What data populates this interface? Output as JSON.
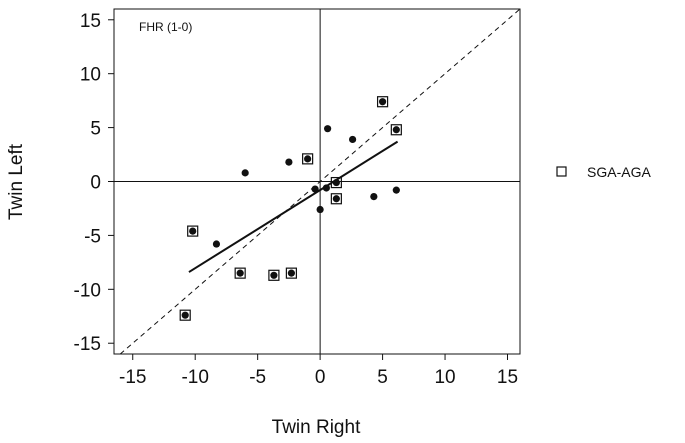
{
  "chart_data": {
    "type": "scatter",
    "title": "",
    "annotation": "FHR (1-0)",
    "xlabel": "Twin Right",
    "ylabel": "Twin Left",
    "xlim": [
      -16.5,
      16
    ],
    "ylim": [
      -16,
      16
    ],
    "xticks": [
      -15,
      -10,
      -5,
      0,
      5,
      10,
      15
    ],
    "yticks": [
      -15,
      -10,
      -5,
      0,
      5,
      10,
      15
    ],
    "tick_labels_x": [
      "-15",
      "-10",
      "-5",
      "0",
      "5",
      "10",
      "15"
    ],
    "tick_labels_y": [
      "-15",
      "-10",
      "-5",
      "0",
      "5",
      "10",
      "15"
    ],
    "grid": false,
    "reference_lines": {
      "x_zero": true,
      "y_zero": true,
      "identity_dashed": true
    },
    "regression_line": {
      "from": [
        -10.5,
        -8.4
      ],
      "to": [
        6.2,
        3.7
      ]
    },
    "series": [
      {
        "name": "SGA-AGA",
        "marker": "dot-in-square",
        "points": [
          [
            -10.2,
            -4.6
          ],
          [
            -10.8,
            -12.4
          ],
          [
            -6.4,
            -8.5
          ],
          [
            -3.7,
            -8.7
          ],
          [
            -2.3,
            -8.5
          ],
          [
            -1.0,
            2.1
          ],
          [
            1.3,
            -0.1
          ],
          [
            1.3,
            -1.6
          ],
          [
            5.0,
            7.4
          ],
          [
            6.1,
            4.8
          ]
        ]
      },
      {
        "marker": "dot",
        "points": [
          [
            -8.3,
            -5.8
          ],
          [
            -6.0,
            0.8
          ],
          [
            -2.5,
            1.8
          ],
          [
            -0.4,
            -0.7
          ],
          [
            0.0,
            -2.6
          ],
          [
            0.5,
            -0.6
          ],
          [
            0.6,
            4.9
          ],
          [
            2.6,
            3.9
          ],
          [
            4.3,
            -1.4
          ],
          [
            6.1,
            -0.8
          ]
        ]
      }
    ],
    "legend": {
      "position": "right",
      "entries": [
        "SGA-AGA"
      ]
    }
  },
  "colors": {
    "ink": "#111111",
    "background": "#ffffff"
  }
}
